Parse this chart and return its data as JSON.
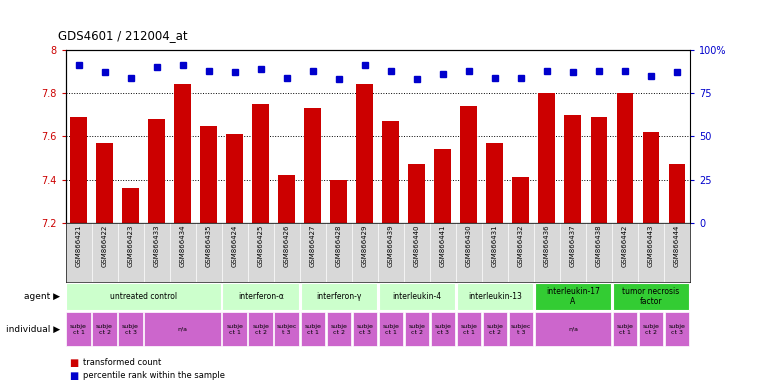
{
  "title": "GDS4601 / 212004_at",
  "samples": [
    "GSM866421",
    "GSM866422",
    "GSM866423",
    "GSM866433",
    "GSM866434",
    "GSM866435",
    "GSM866424",
    "GSM866425",
    "GSM866426",
    "GSM866427",
    "GSM866428",
    "GSM866429",
    "GSM866439",
    "GSM866440",
    "GSM866441",
    "GSM866430",
    "GSM866431",
    "GSM866432",
    "GSM866436",
    "GSM866437",
    "GSM866438",
    "GSM866442",
    "GSM866443",
    "GSM866444"
  ],
  "bar_values": [
    7.69,
    7.57,
    7.36,
    7.68,
    7.84,
    7.65,
    7.61,
    7.75,
    7.42,
    7.73,
    7.4,
    7.84,
    7.67,
    7.47,
    7.54,
    7.74,
    7.57,
    7.41,
    7.8,
    7.7,
    7.69,
    7.8,
    7.62,
    7.47
  ],
  "percentile_values": [
    91,
    87,
    84,
    90,
    91,
    88,
    87,
    89,
    84,
    88,
    83,
    91,
    88,
    83,
    86,
    88,
    84,
    84,
    88,
    87,
    88,
    88,
    85,
    87
  ],
  "ylim": [
    7.2,
    8.0
  ],
  "yticks": [
    7.2,
    7.4,
    7.6,
    7.8,
    8.0
  ],
  "ytick_labels": [
    "7.2",
    "7.4",
    "7.6",
    "7.8",
    "8"
  ],
  "right_yticks": [
    0,
    25,
    50,
    75,
    100
  ],
  "right_ytick_labels": [
    "0",
    "25",
    "50",
    "75",
    "100%"
  ],
  "bar_color": "#cc0000",
  "dot_color": "#0000cc",
  "agent_groups": [
    {
      "label": "untreated control",
      "start": 0,
      "end": 6,
      "color": "#ccffcc"
    },
    {
      "label": "interferon-α",
      "start": 6,
      "end": 9,
      "color": "#ccffcc"
    },
    {
      "label": "interferon-γ",
      "start": 9,
      "end": 12,
      "color": "#ccffcc"
    },
    {
      "label": "interleukin-4",
      "start": 12,
      "end": 15,
      "color": "#ccffcc"
    },
    {
      "label": "interleukin-13",
      "start": 15,
      "end": 18,
      "color": "#ccffcc"
    },
    {
      "label": "interleukin-17\nA",
      "start": 18,
      "end": 21,
      "color": "#33cc33"
    },
    {
      "label": "tumor necrosis\nfactor",
      "start": 21,
      "end": 24,
      "color": "#33cc33"
    }
  ],
  "individual_groups": [
    {
      "label": "subje\nct 1",
      "start": 0,
      "end": 1,
      "color": "#cc66cc"
    },
    {
      "label": "subje\nct 2",
      "start": 1,
      "end": 2,
      "color": "#cc66cc"
    },
    {
      "label": "subje\nct 3",
      "start": 2,
      "end": 3,
      "color": "#cc66cc"
    },
    {
      "label": "n/a",
      "start": 3,
      "end": 6,
      "color": "#cc66cc"
    },
    {
      "label": "subje\nct 1",
      "start": 6,
      "end": 7,
      "color": "#cc66cc"
    },
    {
      "label": "subje\nct 2",
      "start": 7,
      "end": 8,
      "color": "#cc66cc"
    },
    {
      "label": "subjec\nt 3",
      "start": 8,
      "end": 9,
      "color": "#cc66cc"
    },
    {
      "label": "subje\nct 1",
      "start": 9,
      "end": 10,
      "color": "#cc66cc"
    },
    {
      "label": "subje\nct 2",
      "start": 10,
      "end": 11,
      "color": "#cc66cc"
    },
    {
      "label": "subje\nct 3",
      "start": 11,
      "end": 12,
      "color": "#cc66cc"
    },
    {
      "label": "subje\nct 1",
      "start": 12,
      "end": 13,
      "color": "#cc66cc"
    },
    {
      "label": "subje\nct 2",
      "start": 13,
      "end": 14,
      "color": "#cc66cc"
    },
    {
      "label": "subje\nct 3",
      "start": 14,
      "end": 15,
      "color": "#cc66cc"
    },
    {
      "label": "subje\nct 1",
      "start": 15,
      "end": 16,
      "color": "#cc66cc"
    },
    {
      "label": "subje\nct 2",
      "start": 16,
      "end": 17,
      "color": "#cc66cc"
    },
    {
      "label": "subjec\nt 3",
      "start": 17,
      "end": 18,
      "color": "#cc66cc"
    },
    {
      "label": "n/a",
      "start": 18,
      "end": 21,
      "color": "#cc66cc"
    },
    {
      "label": "subje\nct 1",
      "start": 21,
      "end": 22,
      "color": "#cc66cc"
    },
    {
      "label": "subje\nct 2",
      "start": 22,
      "end": 23,
      "color": "#cc66cc"
    },
    {
      "label": "subje\nct 3",
      "start": 23,
      "end": 24,
      "color": "#cc66cc"
    }
  ],
  "fig_width": 7.71,
  "fig_height": 3.84,
  "dpi": 100
}
